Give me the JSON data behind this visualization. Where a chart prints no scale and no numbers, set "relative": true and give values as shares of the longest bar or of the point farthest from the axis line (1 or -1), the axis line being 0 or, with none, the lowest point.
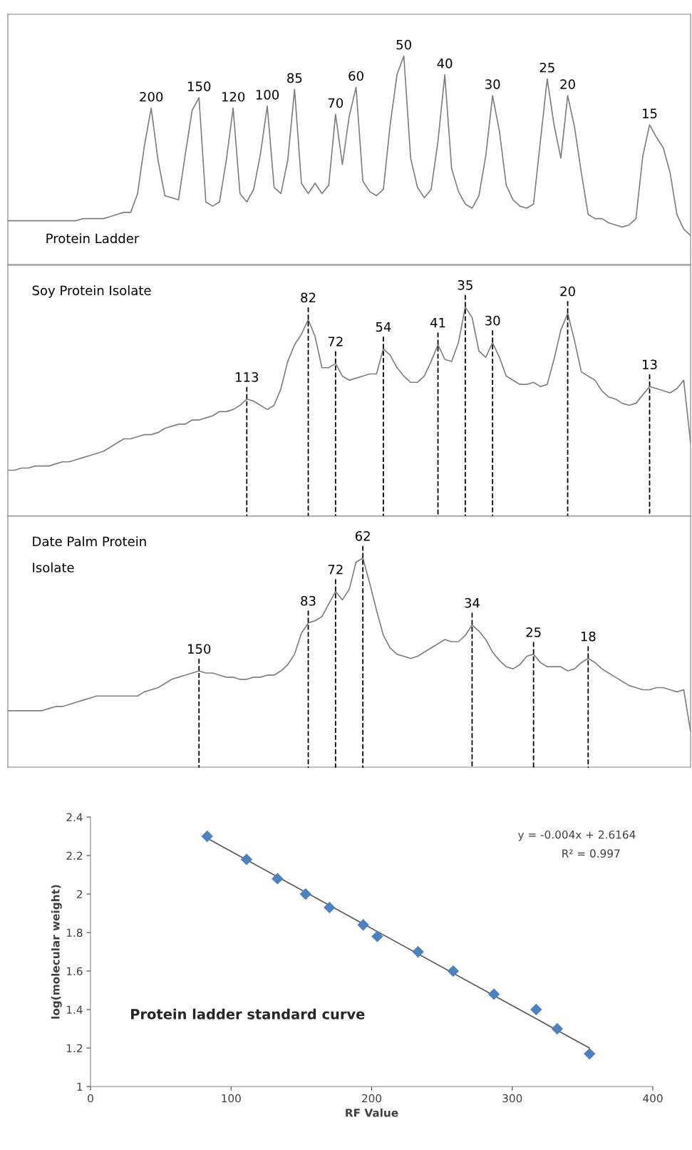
{
  "chart_data": [
    {
      "type": "line",
      "title": "Protein Ladder",
      "relative": true,
      "categories": [
        null,
        null,
        null,
        null,
        null,
        null,
        null,
        null,
        null,
        null,
        null,
        null,
        null,
        null,
        null,
        null,
        null,
        null,
        null,
        null,
        null,
        null,
        null,
        null,
        null,
        null,
        null,
        null,
        null,
        null,
        null,
        null,
        null,
        null,
        null,
        null,
        null,
        null,
        null,
        null,
        null,
        null,
        null,
        null,
        null,
        null,
        null,
        null,
        null,
        null,
        null,
        null,
        null,
        null,
        null,
        null,
        null,
        null,
        null,
        null,
        null,
        null,
        null,
        null,
        null,
        null,
        null,
        null,
        null,
        null,
        null,
        null,
        null,
        null,
        null,
        null,
        null,
        null,
        null,
        null,
        null,
        null,
        null,
        null,
        null,
        null,
        null,
        null,
        null,
        null,
        null,
        null,
        null,
        null,
        null,
        null,
        null,
        null,
        null,
        null,
        null
      ],
      "series": [
        {
          "color": "#7f7f7f",
          "values": [
            0.21,
            0.21,
            0.21,
            0.21,
            0.21,
            0.21,
            0.21,
            0.21,
            0.21,
            0.21,
            0.21,
            0.22,
            0.22,
            0.22,
            0.22,
            0.23,
            0.24,
            0.25,
            0.25,
            0.34,
            0.57,
            0.75,
            0.5,
            0.33,
            0.32,
            0.31,
            0.53,
            0.74,
            0.8,
            0.3,
            0.28,
            0.3,
            0.5,
            0.75,
            0.34,
            0.3,
            0.36,
            0.53,
            0.76,
            0.37,
            0.34,
            0.5,
            0.84,
            0.39,
            0.34,
            0.39,
            0.34,
            0.38,
            0.72,
            0.48,
            0.71,
            0.85,
            0.4,
            0.35,
            0.33,
            0.36,
            0.67,
            0.91,
            1.0,
            0.51,
            0.37,
            0.32,
            0.36,
            0.59,
            0.91,
            0.46,
            0.35,
            0.29,
            0.27,
            0.33,
            0.52,
            0.81,
            0.64,
            0.38,
            0.31,
            0.28,
            0.27,
            0.29,
            0.59,
            0.89,
            0.67,
            0.51,
            0.81,
            0.66,
            0.44,
            0.24,
            0.22,
            0.22,
            0.2,
            0.19,
            0.18,
            0.19,
            0.22,
            0.52,
            0.67,
            0.61,
            0.56,
            0.44,
            0.24,
            0.17,
            0.14
          ]
        }
      ],
      "annotations": [
        {
          "text": "200",
          "y": 0.75
        },
        {
          "text": "150",
          "y": 0.8
        },
        {
          "text": "120",
          "y": 0.75
        },
        {
          "text": "100",
          "y": 0.76
        },
        {
          "text": "85",
          "y": 0.84
        },
        {
          "text": "70",
          "y": 0.72
        },
        {
          "text": "60",
          "y": 0.85
        },
        {
          "text": "50",
          "y": 1.0
        },
        {
          "text": "40",
          "y": 0.91
        },
        {
          "text": "30",
          "y": 0.81
        },
        {
          "text": "25",
          "y": 0.89
        },
        {
          "text": "20",
          "y": 0.81
        },
        {
          "text": "15",
          "y": 0.67
        }
      ]
    },
    {
      "type": "line",
      "title": "Soy Protein Isolate",
      "relative": true,
      "categories": [
        null,
        null,
        null,
        null,
        null,
        null,
        null,
        null,
        null,
        null,
        null,
        null,
        null,
        null,
        null,
        null,
        null,
        null,
        null,
        null,
        null,
        null,
        null,
        null,
        null,
        null,
        null,
        null,
        null,
        null,
        null,
        null,
        null,
        null,
        null,
        null,
        null,
        null,
        null,
        null,
        null,
        null,
        null,
        null,
        null,
        null,
        null,
        null,
        null,
        null,
        null,
        null,
        null,
        null,
        null,
        null,
        null,
        null,
        null,
        null,
        null,
        null,
        null,
        null,
        null,
        null,
        null,
        null,
        null,
        null,
        null,
        null,
        null,
        null,
        null,
        null,
        null,
        null,
        null,
        null,
        null,
        null,
        null,
        null,
        null,
        null,
        null,
        null,
        null,
        null,
        null,
        null,
        null,
        null,
        null,
        null,
        null,
        null,
        null,
        null,
        null
      ],
      "series": [
        {
          "color": "#7f7f7f",
          "values": [
            0.22,
            0.22,
            0.23,
            0.23,
            0.24,
            0.24,
            0.24,
            0.25,
            0.26,
            0.26,
            0.27,
            0.28,
            0.29,
            0.3,
            0.31,
            0.33,
            0.35,
            0.37,
            0.37,
            0.38,
            0.39,
            0.39,
            0.4,
            0.42,
            0.43,
            0.44,
            0.44,
            0.46,
            0.46,
            0.47,
            0.48,
            0.5,
            0.5,
            0.51,
            0.53,
            0.56,
            0.55,
            0.53,
            0.51,
            0.53,
            0.61,
            0.74,
            0.82,
            0.87,
            0.94,
            0.86,
            0.71,
            0.71,
            0.73,
            0.67,
            0.65,
            0.66,
            0.67,
            0.68,
            0.68,
            0.8,
            0.77,
            0.71,
            0.67,
            0.64,
            0.64,
            0.67,
            0.74,
            0.82,
            0.75,
            0.74,
            0.83,
            1.0,
            0.95,
            0.79,
            0.76,
            0.83,
            0.76,
            0.67,
            0.65,
            0.63,
            0.63,
            0.64,
            0.62,
            0.63,
            0.75,
            0.89,
            0.97,
            0.84,
            0.69,
            0.67,
            0.65,
            0.6,
            0.57,
            0.56,
            0.54,
            0.53,
            0.54,
            0.58,
            0.62,
            0.61,
            0.6,
            0.59,
            0.61,
            0.65,
            0.35
          ]
        }
      ],
      "annotations": [
        {
          "text": "113",
          "y": 0.56
        },
        {
          "text": "82",
          "y": 0.94
        },
        {
          "text": "72",
          "y": 0.73
        },
        {
          "text": "54",
          "y": 0.8
        },
        {
          "text": "41",
          "y": 0.82
        },
        {
          "text": "35",
          "y": 1.0
        },
        {
          "text": "30",
          "y": 0.83
        },
        {
          "text": "20",
          "y": 0.97
        },
        {
          "text": "13",
          "y": 0.62
        }
      ]
    },
    {
      "type": "line",
      "title": "Date Palm Protein\nIsolate",
      "relative": true,
      "categories": [
        null,
        null,
        null,
        null,
        null,
        null,
        null,
        null,
        null,
        null,
        null,
        null,
        null,
        null,
        null,
        null,
        null,
        null,
        null,
        null,
        null,
        null,
        null,
        null,
        null,
        null,
        null,
        null,
        null,
        null,
        null,
        null,
        null,
        null,
        null,
        null,
        null,
        null,
        null,
        null,
        null,
        null,
        null,
        null,
        null,
        null,
        null,
        null,
        null,
        null,
        null,
        null,
        null,
        null,
        null,
        null,
        null,
        null,
        null,
        null,
        null,
        null,
        null,
        null,
        null,
        null,
        null,
        null,
        null,
        null,
        null,
        null,
        null,
        null,
        null,
        null,
        null,
        null,
        null,
        null,
        null,
        null,
        null,
        null,
        null,
        null,
        null,
        null,
        null,
        null,
        null,
        null,
        null,
        null,
        null,
        null,
        null,
        null,
        null,
        null,
        null
      ],
      "series": [
        {
          "color": "#7f7f7f",
          "values": [
            0.27,
            0.27,
            0.27,
            0.27,
            0.27,
            0.27,
            0.28,
            0.29,
            0.29,
            0.3,
            0.31,
            0.32,
            0.33,
            0.34,
            0.34,
            0.34,
            0.34,
            0.34,
            0.34,
            0.34,
            0.36,
            0.37,
            0.38,
            0.4,
            0.42,
            0.43,
            0.44,
            0.45,
            0.46,
            0.45,
            0.45,
            0.44,
            0.43,
            0.43,
            0.42,
            0.42,
            0.43,
            0.43,
            0.44,
            0.44,
            0.46,
            0.49,
            0.54,
            0.64,
            0.69,
            0.7,
            0.72,
            0.78,
            0.84,
            0.8,
            0.85,
            0.98,
            1.0,
            0.88,
            0.75,
            0.63,
            0.57,
            0.54,
            0.53,
            0.52,
            0.53,
            0.55,
            0.57,
            0.59,
            0.61,
            0.6,
            0.6,
            0.63,
            0.68,
            0.65,
            0.61,
            0.55,
            0.51,
            0.48,
            0.47,
            0.49,
            0.53,
            0.54,
            0.5,
            0.48,
            0.48,
            0.48,
            0.46,
            0.47,
            0.5,
            0.52,
            0.5,
            0.47,
            0.45,
            0.43,
            0.41,
            0.39,
            0.38,
            0.37,
            0.37,
            0.38,
            0.38,
            0.37,
            0.36,
            0.37,
            0.17
          ]
        }
      ],
      "annotations": [
        {
          "text": "150",
          "y": 0.46
        },
        {
          "text": "83",
          "y": 0.69
        },
        {
          "text": "72",
          "y": 0.84
        },
        {
          "text": "62",
          "y": 1.0
        },
        {
          "text": "34",
          "y": 0.68
        },
        {
          "text": "25",
          "y": 0.54
        },
        {
          "text": "18",
          "y": 0.52
        }
      ]
    },
    {
      "type": "scatter",
      "xlabel": "RF Value",
      "ylabel": "log(molecular weight)",
      "xlim": [
        0,
        400
      ],
      "xticks": [
        0,
        100,
        200,
        300,
        400
      ],
      "ylim": [
        1,
        2.4
      ],
      "yticks": [
        1,
        1.2,
        1.4,
        1.6,
        1.8,
        2,
        2.2,
        2.4
      ],
      "grid": false,
      "series": [
        {
          "color": "#4f81bd",
          "marker": "diamond",
          "x": [
            83,
            111,
            133,
            153,
            170,
            194,
            204,
            233,
            258,
            287,
            317,
            332,
            355
          ],
          "values": [
            2.3,
            2.18,
            2.08,
            2.0,
            1.93,
            1.84,
            1.78,
            1.7,
            1.6,
            1.48,
            1.4,
            1.3,
            1.17
          ]
        },
        {
          "type": "line",
          "color": "#595959",
          "x": [
            83,
            355
          ],
          "values": [
            2.29,
            1.2
          ]
        }
      ],
      "annotations": [
        "y = -0.004x + 2.6164",
        "R² = 0.997",
        "Protein ladder standard curve"
      ]
    }
  ]
}
